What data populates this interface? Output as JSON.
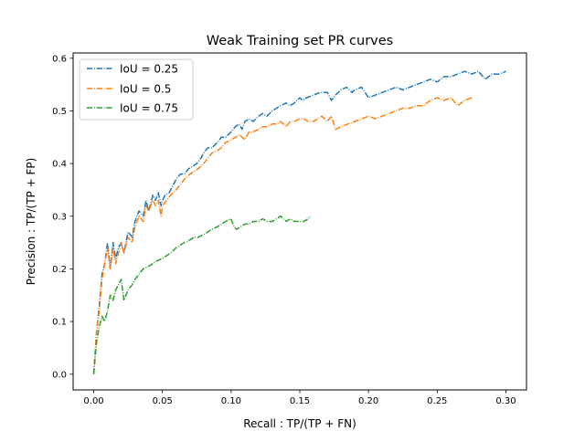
{
  "chart_data": {
    "type": "line",
    "title": "Weak Training set PR curves",
    "xlabel": "Recall : TP/(TP + FN)",
    "ylabel": "Precision : TP/(TP + FP)",
    "xlim": [
      -0.015,
      0.315
    ],
    "ylim": [
      -0.03,
      0.61
    ],
    "xticks": [
      0.0,
      0.05,
      0.1,
      0.15,
      0.2,
      0.25,
      0.3
    ],
    "xtick_labels": [
      "0.00",
      "0.05",
      "0.10",
      "0.15",
      "0.20",
      "0.25",
      "0.30"
    ],
    "yticks": [
      0.0,
      0.1,
      0.2,
      0.3,
      0.4,
      0.5,
      0.6
    ],
    "ytick_labels": [
      "0.0",
      "0.1",
      "0.2",
      "0.3",
      "0.4",
      "0.5",
      "0.6"
    ],
    "grid": false,
    "legend_position": "upper-left",
    "line_style": "dash-dot",
    "series": [
      {
        "name": "IoU = 0.25",
        "color": "#1f77b4",
        "x": [
          0.0,
          0.002,
          0.004,
          0.006,
          0.008,
          0.01,
          0.012,
          0.014,
          0.016,
          0.018,
          0.02,
          0.022,
          0.025,
          0.028,
          0.03,
          0.033,
          0.036,
          0.038,
          0.04,
          0.043,
          0.045,
          0.047,
          0.049,
          0.05,
          0.052,
          0.055,
          0.058,
          0.06,
          0.063,
          0.066,
          0.069,
          0.072,
          0.075,
          0.078,
          0.08,
          0.083,
          0.086,
          0.09,
          0.093,
          0.096,
          0.1,
          0.103,
          0.106,
          0.108,
          0.11,
          0.113,
          0.116,
          0.12,
          0.123,
          0.126,
          0.13,
          0.133,
          0.136,
          0.14,
          0.143,
          0.146,
          0.15,
          0.152,
          0.155,
          0.16,
          0.165,
          0.17,
          0.173,
          0.176,
          0.18,
          0.184,
          0.188,
          0.19,
          0.195,
          0.2,
          0.205,
          0.21,
          0.215,
          0.22,
          0.225,
          0.23,
          0.235,
          0.24,
          0.245,
          0.25,
          0.255,
          0.26,
          0.265,
          0.27,
          0.275,
          0.28,
          0.285,
          0.29,
          0.295,
          0.3
        ],
        "values": [
          0.0,
          0.08,
          0.13,
          0.19,
          0.21,
          0.25,
          0.2,
          0.25,
          0.22,
          0.24,
          0.25,
          0.23,
          0.27,
          0.26,
          0.29,
          0.31,
          0.3,
          0.33,
          0.31,
          0.34,
          0.33,
          0.345,
          0.32,
          0.33,
          0.34,
          0.345,
          0.36,
          0.37,
          0.38,
          0.38,
          0.39,
          0.395,
          0.4,
          0.41,
          0.42,
          0.43,
          0.43,
          0.44,
          0.45,
          0.45,
          0.46,
          0.47,
          0.475,
          0.465,
          0.48,
          0.485,
          0.48,
          0.49,
          0.495,
          0.49,
          0.5,
          0.505,
          0.51,
          0.515,
          0.51,
          0.515,
          0.525,
          0.52,
          0.525,
          0.53,
          0.535,
          0.535,
          0.52,
          0.53,
          0.54,
          0.545,
          0.535,
          0.54,
          0.545,
          0.525,
          0.53,
          0.535,
          0.54,
          0.545,
          0.54,
          0.545,
          0.55,
          0.555,
          0.56,
          0.555,
          0.565,
          0.565,
          0.57,
          0.575,
          0.57,
          0.575,
          0.56,
          0.57,
          0.57,
          0.575
        ]
      },
      {
        "name": "IoU = 0.5",
        "color": "#ff7f0e",
        "x": [
          0.0,
          0.002,
          0.004,
          0.006,
          0.008,
          0.01,
          0.012,
          0.014,
          0.016,
          0.018,
          0.02,
          0.022,
          0.025,
          0.028,
          0.03,
          0.033,
          0.036,
          0.038,
          0.04,
          0.043,
          0.045,
          0.047,
          0.049,
          0.05,
          0.053,
          0.056,
          0.06,
          0.063,
          0.066,
          0.07,
          0.073,
          0.076,
          0.08,
          0.083,
          0.086,
          0.09,
          0.093,
          0.096,
          0.1,
          0.103,
          0.106,
          0.11,
          0.113,
          0.116,
          0.12,
          0.123,
          0.126,
          0.13,
          0.133,
          0.136,
          0.14,
          0.143,
          0.146,
          0.15,
          0.153,
          0.156,
          0.16,
          0.163,
          0.166,
          0.17,
          0.173,
          0.176,
          0.18,
          0.185,
          0.19,
          0.195,
          0.2,
          0.205,
          0.21,
          0.215,
          0.22,
          0.225,
          0.23,
          0.235,
          0.24,
          0.245,
          0.25,
          0.255,
          0.26,
          0.265,
          0.27,
          0.275
        ],
        "values": [
          0.0,
          0.08,
          0.12,
          0.18,
          0.21,
          0.24,
          0.2,
          0.24,
          0.21,
          0.23,
          0.25,
          0.23,
          0.26,
          0.25,
          0.28,
          0.3,
          0.29,
          0.32,
          0.31,
          0.33,
          0.32,
          0.33,
          0.3,
          0.32,
          0.33,
          0.34,
          0.35,
          0.36,
          0.37,
          0.38,
          0.385,
          0.39,
          0.4,
          0.41,
          0.42,
          0.425,
          0.43,
          0.44,
          0.445,
          0.45,
          0.455,
          0.445,
          0.46,
          0.46,
          0.465,
          0.47,
          0.47,
          0.475,
          0.475,
          0.48,
          0.47,
          0.48,
          0.48,
          0.485,
          0.485,
          0.48,
          0.48,
          0.485,
          0.49,
          0.48,
          0.49,
          0.465,
          0.47,
          0.475,
          0.48,
          0.485,
          0.49,
          0.485,
          0.49,
          0.495,
          0.5,
          0.505,
          0.505,
          0.51,
          0.51,
          0.52,
          0.525,
          0.52,
          0.525,
          0.51,
          0.52,
          0.525
        ]
      },
      {
        "name": "IoU = 0.75",
        "color": "#2ca02c",
        "x": [
          0.0,
          0.002,
          0.004,
          0.006,
          0.008,
          0.01,
          0.012,
          0.014,
          0.016,
          0.018,
          0.02,
          0.022,
          0.025,
          0.028,
          0.03,
          0.033,
          0.036,
          0.04,
          0.043,
          0.046,
          0.05,
          0.053,
          0.056,
          0.06,
          0.063,
          0.066,
          0.07,
          0.073,
          0.076,
          0.08,
          0.083,
          0.086,
          0.09,
          0.093,
          0.096,
          0.1,
          0.102,
          0.104,
          0.107,
          0.11,
          0.113,
          0.116,
          0.12,
          0.123,
          0.126,
          0.13,
          0.133,
          0.136,
          0.14,
          0.143,
          0.146,
          0.15,
          0.153,
          0.156,
          0.158
        ],
        "values": [
          0.0,
          0.06,
          0.09,
          0.11,
          0.1,
          0.12,
          0.15,
          0.14,
          0.16,
          0.17,
          0.18,
          0.14,
          0.16,
          0.17,
          0.18,
          0.19,
          0.2,
          0.205,
          0.21,
          0.215,
          0.22,
          0.225,
          0.23,
          0.24,
          0.245,
          0.25,
          0.255,
          0.26,
          0.26,
          0.265,
          0.27,
          0.275,
          0.28,
          0.285,
          0.29,
          0.295,
          0.28,
          0.275,
          0.28,
          0.285,
          0.285,
          0.29,
          0.29,
          0.295,
          0.29,
          0.29,
          0.295,
          0.3,
          0.29,
          0.295,
          0.29,
          0.29,
          0.29,
          0.295,
          0.3
        ]
      }
    ]
  }
}
